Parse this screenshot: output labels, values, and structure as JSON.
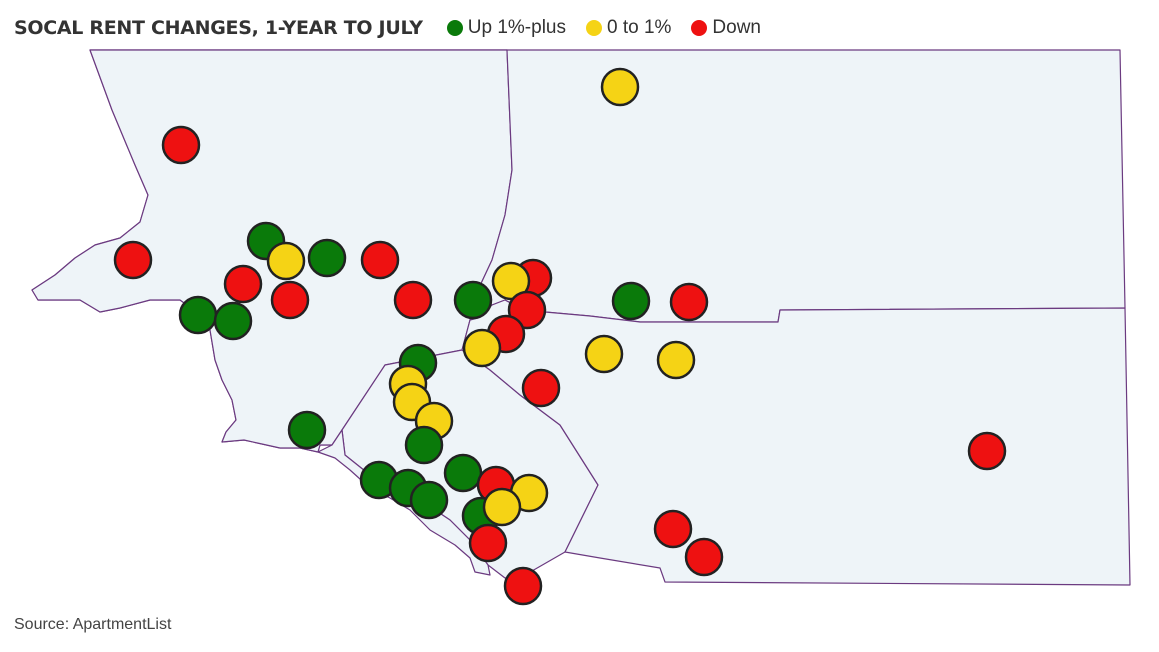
{
  "header": {
    "title": "SOCAL RENT CHANGES, 1-YEAR TO JULY",
    "legend": [
      {
        "label": "Up 1%-plus",
        "color": "#0a7a0a"
      },
      {
        "label": "0 to 1%",
        "color": "#f5d315"
      },
      {
        "label": "Down",
        "color": "#ee1111"
      }
    ]
  },
  "source": "Source: ApartmentList",
  "map": {
    "fill": "#eef4f8",
    "border_color": "#6b3a80",
    "marker_outline": "#222222",
    "categories": {
      "up": "#0a7a0a",
      "flat": "#f5d315",
      "down": "#ee1111"
    }
  }
}
